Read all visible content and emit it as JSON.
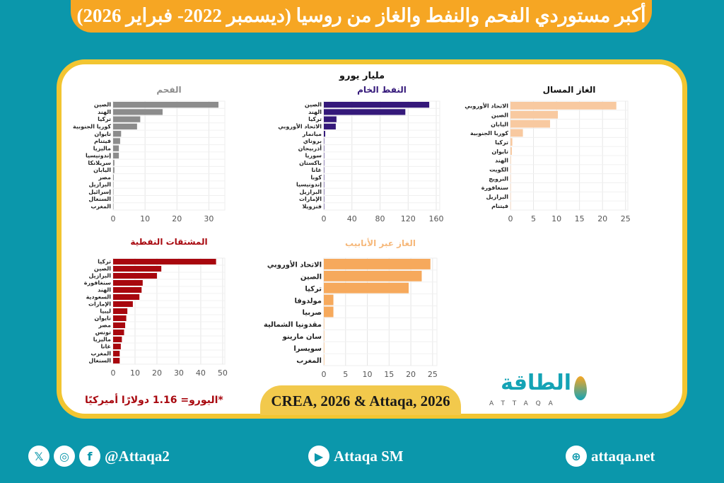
{
  "header": {
    "title": "أكبر مستوردي الفحم والنفط والغاز من روسيا (ديسمبر 2022- فبراير 2026)"
  },
  "unit_label": "مليار يورو",
  "chart_data": [
    {
      "type": "bar",
      "orientation": "horizontal",
      "title": "الفحم",
      "color": "#8c8c8c",
      "title_color": "#8c8c8c",
      "xlim": [
        0,
        35
      ],
      "ticks": [
        0,
        10,
        20,
        30
      ],
      "grid": true,
      "categories": [
        "الصين",
        "الهند",
        "تركيا",
        "كوريا الجنوبية",
        "تايوان",
        "فيتنام",
        "ماليزيا",
        "إندونيسيا",
        "سريلانكا",
        "اليابان",
        "مصر",
        "البرازيل",
        "إسرائيل",
        "السنغال",
        "المغرب"
      ],
      "values": [
        33,
        15.5,
        8.5,
        7.5,
        2.5,
        2.2,
        1.8,
        1.8,
        0.4,
        0.4,
        0.2,
        0.1,
        0.1,
        0.05,
        0.05
      ]
    },
    {
      "type": "bar",
      "orientation": "horizontal",
      "title": "النفط الخام",
      "color": "#35197a",
      "title_color": "#35197a",
      "xlim": [
        0,
        165
      ],
      "ticks": [
        0,
        40,
        80,
        120,
        160
      ],
      "grid": true,
      "categories": [
        "الصين",
        "الهند",
        "تركيا",
        "الاتحاد الأوروبي",
        "ميانمار",
        "بروناي",
        "أذربيجان",
        "سوريا",
        "باكستان",
        "غانا",
        "كوبا",
        "إندونيسيا",
        "البرازيل",
        "الإمارات",
        "فنزويلا"
      ],
      "values": [
        150,
        116,
        18,
        17,
        2,
        0.3,
        0.3,
        0.2,
        0.2,
        0.2,
        0.2,
        0.1,
        0.1,
        0.1,
        0.1
      ]
    },
    {
      "type": "bar",
      "orientation": "horizontal",
      "title": "الغاز المسال",
      "color": "#f8c9a0",
      "title_color": "#111111",
      "xlim": [
        0,
        25.5
      ],
      "ticks": [
        0,
        5,
        10,
        15,
        20,
        25
      ],
      "grid": true,
      "categories": [
        "الاتحاد الأوروبي",
        "الصين",
        "اليابان",
        "كوريا الجنوبية",
        "تركيا",
        "تايوان",
        "الهند",
        "الكويت",
        "النرويج",
        "سنغافورة",
        "البرازيل",
        "فيتنام"
      ],
      "values": [
        23,
        10.3,
        8.6,
        2.7,
        0.4,
        0.3,
        0.1,
        0.05,
        0.05,
        0.05,
        0.05,
        0.05
      ]
    },
    {
      "type": "bar",
      "orientation": "horizontal",
      "title": "المشتقات النفطية",
      "color": "#a8070e",
      "title_color": "#a8070e",
      "xlim": [
        0,
        51
      ],
      "ticks": [
        0,
        10,
        20,
        30,
        40,
        50
      ],
      "grid": true,
      "categories": [
        "تركيا",
        "الصين",
        "البرازيل",
        "سنغافورة",
        "الهند",
        "السعودية",
        "الإمارات",
        "ليبيا",
        "تايوان",
        "مصر",
        "تونس",
        "ماليزيا",
        "غانا",
        "المغرب",
        "السنغال"
      ],
      "values": [
        47,
        22,
        20,
        13.5,
        13,
        12,
        9,
        6.5,
        6,
        5.5,
        5,
        4,
        3.5,
        3,
        3
      ]
    },
    {
      "type": "bar",
      "orientation": "horizontal",
      "title": "الغاز عبر الأنابيب",
      "color": "#f6a95c",
      "title_color": "#f6b87a",
      "xlim": [
        0,
        26
      ],
      "ticks": [
        0,
        5,
        10,
        15,
        20,
        25
      ],
      "grid": true,
      "categories": [
        "الاتحاد الأوروبي",
        "الصين",
        "تركيا",
        "مولدوفا",
        "صربيا",
        "مقدونيا الشمالية",
        "سان مارينو",
        "سويسرا",
        "المغرب"
      ],
      "values": [
        24.5,
        22.5,
        19.5,
        2.2,
        2.2,
        0.05,
        0.05,
        0.05,
        0.05
      ]
    }
  ],
  "note": "*اليورو= 1.16 دولارًا أميركيًا",
  "source": "CREA, 2026 & Attaqa, 2026",
  "logo": {
    "arabic": "الطاقة",
    "latin": "ATTAQA"
  },
  "footer": {
    "social_handle": "@Attaqa2",
    "youtube": "Attaqa SM",
    "website": "attaqa.net"
  }
}
